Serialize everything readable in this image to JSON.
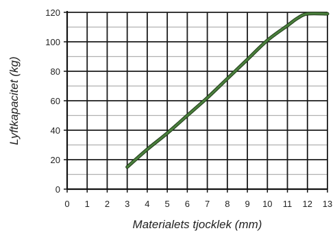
{
  "chart_data": {
    "type": "line",
    "title": "",
    "xlabel": "Materialets tjocklek (mm)",
    "ylabel": "Lyftkapacitet (kg)",
    "xlim": [
      0,
      13
    ],
    "ylim": [
      0,
      120
    ],
    "xticks": [
      "0",
      "1",
      "2",
      "3",
      "4",
      "5",
      "6",
      "7",
      "8",
      "9",
      "10",
      "11",
      "12",
      "13"
    ],
    "yticks": [
      "0",
      "20",
      "40",
      "60",
      "80",
      "100",
      "120"
    ],
    "grid": true,
    "series": [
      {
        "x": [
          3,
          4,
          5,
          6,
          7,
          8,
          9,
          10,
          11,
          11.5,
          12,
          13
        ],
        "y": [
          15,
          27,
          38,
          50,
          62,
          75,
          88,
          101,
          111,
          116,
          119,
          119
        ]
      }
    ],
    "colors": {
      "line": "#4a7f3c",
      "line_edge": "#1f3a18",
      "grid": "#1a1a1a",
      "minor_grid": "#b0b0b0"
    }
  }
}
